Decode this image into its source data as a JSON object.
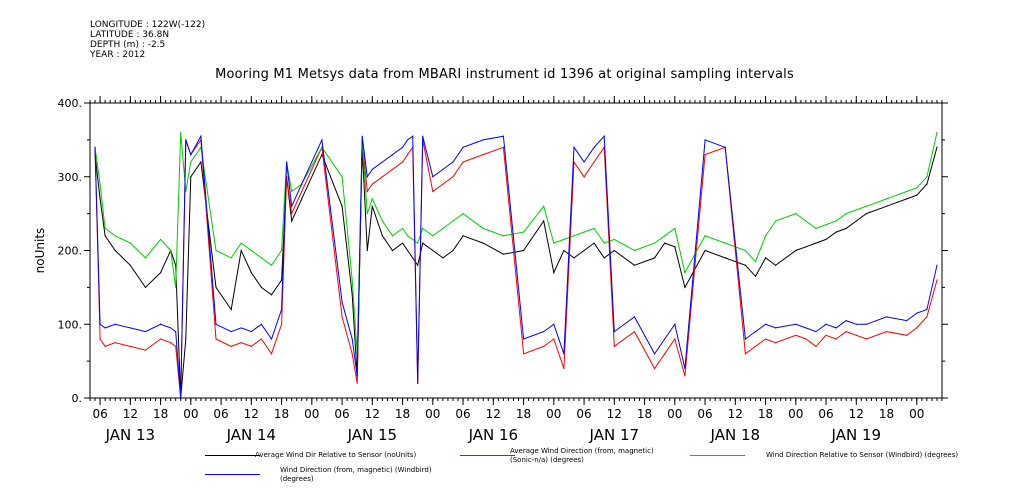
{
  "header": {
    "longitude": "LONGITUDE : 122W(-122)",
    "latitude": "LATITUDE : 36.8N",
    "depth": "DEPTH (m) : -2.5",
    "year": "YEAR : 2012"
  },
  "chart_data": {
    "type": "line",
    "title": "Mooring M1 Metsys data from MBARI instrument id 1396 at original sampling intervals",
    "ylabel": "noUnits",
    "xlabel": "",
    "ylim": [
      0,
      400
    ],
    "y_ticks": [
      "0.",
      "100.",
      "200.",
      "300.",
      "400."
    ],
    "xlim_hours": [
      -8,
      161
    ],
    "x_hour_ticks": [
      "06",
      "12",
      "18",
      "00",
      "06",
      "12",
      "18",
      "00",
      "06",
      "12",
      "18",
      "00",
      "06",
      "12",
      "18",
      "00",
      "06",
      "12",
      "18",
      "00",
      "06",
      "12",
      "18",
      "00",
      "06",
      "12",
      "18",
      "00"
    ],
    "x_date_labels": [
      "JAN 13",
      "JAN 14",
      "JAN 15",
      "JAN 16",
      "JAN 17",
      "JAN 18",
      "JAN 19"
    ],
    "grid": false,
    "series": [
      {
        "name": "Average Wind Dir Relative to Sensor (noUnits)",
        "color": "#000000",
        "x": [
          -7,
          -6,
          -5,
          -3,
          0,
          3,
          6,
          8,
          9,
          10,
          11,
          12,
          14,
          17,
          20,
          22,
          24,
          26,
          28,
          30,
          31,
          32,
          34,
          38,
          42,
          44,
          45,
          46,
          47,
          48,
          50,
          52,
          54,
          55,
          56,
          57,
          58,
          60,
          62,
          64,
          66,
          70,
          74,
          78,
          82,
          84,
          86,
          88,
          90,
          92,
          94,
          96,
          100,
          104,
          106,
          108,
          110,
          114,
          118,
          122,
          124,
          126,
          128,
          132,
          134,
          136,
          138,
          140,
          142,
          144,
          146,
          150,
          154,
          156,
          158,
          160
        ],
        "values": [
          330,
          270,
          220,
          200,
          180,
          150,
          170,
          200,
          180,
          0,
          80,
          300,
          320,
          150,
          120,
          200,
          170,
          150,
          140,
          160,
          300,
          240,
          270,
          330,
          260,
          140,
          30,
          340,
          200,
          260,
          220,
          200,
          210,
          200,
          190,
          180,
          210,
          200,
          190,
          200,
          220,
          210,
          195,
          200,
          240,
          170,
          200,
          190,
          200,
          210,
          190,
          200,
          180,
          190,
          210,
          205,
          150,
          200,
          190,
          180,
          165,
          190,
          180,
          200,
          205,
          210,
          215,
          225,
          230,
          240,
          250,
          260,
          270,
          275,
          290,
          340
        ]
      },
      {
        "name": "Average Wind Direction (from, magnetic) (Sonic-n/a) (degrees)",
        "color": "#ff0000",
        "x": [
          -7,
          -6,
          -5,
          -3,
          0,
          3,
          6,
          8,
          9,
          10,
          11,
          12,
          14,
          17,
          20,
          22,
          24,
          26,
          28,
          30,
          31,
          32,
          34,
          38,
          42,
          44,
          45,
          46,
          47,
          48,
          50,
          52,
          54,
          55,
          56,
          57,
          58,
          60,
          62,
          64,
          66,
          70,
          74,
          78,
          82,
          84,
          86,
          88,
          90,
          92,
          94,
          96,
          100,
          104,
          106,
          108,
          110,
          114,
          118,
          122,
          124,
          126,
          128,
          132,
          134,
          136,
          138,
          140,
          142,
          144,
          146,
          150,
          154,
          156,
          158,
          160
        ],
        "values": [
          340,
          80,
          70,
          75,
          70,
          65,
          80,
          75,
          70,
          0,
          350,
          330,
          350,
          80,
          70,
          75,
          70,
          80,
          60,
          100,
          300,
          250,
          280,
          340,
          110,
          60,
          20,
          350,
          280,
          290,
          300,
          310,
          320,
          330,
          340,
          20,
          350,
          280,
          290,
          300,
          320,
          330,
          340,
          60,
          70,
          80,
          40,
          320,
          300,
          320,
          340,
          70,
          90,
          40,
          60,
          80,
          30,
          330,
          340,
          60,
          70,
          80,
          75,
          85,
          80,
          70,
          85,
          80,
          90,
          85,
          80,
          90,
          85,
          95,
          110,
          160
        ]
      },
      {
        "name": "Wind Direction Relative to Sensor (Windbird) (degrees)",
        "color": "#00cc00",
        "x": [
          -7,
          -6,
          -5,
          -3,
          0,
          3,
          6,
          8,
          9,
          10,
          11,
          12,
          14,
          17,
          20,
          22,
          24,
          26,
          28,
          30,
          31,
          32,
          34,
          38,
          42,
          44,
          45,
          46,
          47,
          48,
          50,
          52,
          54,
          55,
          56,
          57,
          58,
          60,
          62,
          64,
          66,
          70,
          74,
          78,
          82,
          84,
          86,
          88,
          90,
          92,
          94,
          96,
          100,
          104,
          106,
          108,
          110,
          114,
          118,
          122,
          124,
          126,
          128,
          132,
          134,
          136,
          138,
          140,
          142,
          144,
          146,
          150,
          154,
          156,
          158,
          160
        ],
        "values": [
          340,
          290,
          230,
          220,
          210,
          190,
          215,
          200,
          150,
          360,
          280,
          320,
          340,
          200,
          190,
          210,
          200,
          190,
          180,
          200,
          320,
          280,
          290,
          340,
          300,
          160,
          60,
          350,
          250,
          270,
          240,
          220,
          230,
          220,
          215,
          210,
          230,
          220,
          230,
          240,
          250,
          230,
          220,
          225,
          260,
          210,
          215,
          220,
          225,
          230,
          210,
          215,
          200,
          210,
          220,
          230,
          170,
          220,
          210,
          200,
          185,
          220,
          240,
          250,
          240,
          230,
          235,
          240,
          250,
          255,
          260,
          270,
          280,
          285,
          300,
          360
        ]
      },
      {
        "name": "Wind Direction (from, magnetic) (Windbird) (degrees)",
        "color": "#0000ff",
        "x": [
          -7,
          -6,
          -5,
          -3,
          0,
          3,
          6,
          8,
          9,
          10,
          11,
          12,
          14,
          17,
          20,
          22,
          24,
          26,
          28,
          30,
          31,
          32,
          34,
          38,
          42,
          44,
          45,
          46,
          47,
          48,
          50,
          52,
          54,
          55,
          56,
          57,
          58,
          60,
          62,
          64,
          66,
          70,
          74,
          78,
          82,
          84,
          86,
          88,
          90,
          92,
          94,
          96,
          100,
          104,
          106,
          108,
          110,
          114,
          118,
          122,
          124,
          126,
          128,
          132,
          134,
          136,
          138,
          140,
          142,
          144,
          146,
          150,
          154,
          156,
          158,
          160
        ],
        "values": [
          340,
          100,
          95,
          100,
          95,
          90,
          100,
          95,
          90,
          0,
          350,
          330,
          355,
          100,
          90,
          95,
          90,
          100,
          80,
          120,
          320,
          260,
          290,
          350,
          130,
          80,
          30,
          355,
          300,
          310,
          320,
          330,
          340,
          350,
          355,
          20,
          355,
          300,
          310,
          320,
          340,
          350,
          355,
          80,
          90,
          100,
          60,
          340,
          320,
          340,
          355,
          90,
          110,
          60,
          80,
          100,
          40,
          350,
          340,
          80,
          90,
          100,
          95,
          100,
          95,
          90,
          100,
          95,
          105,
          100,
          100,
          110,
          105,
          115,
          120,
          180
        ]
      }
    ]
  }
}
